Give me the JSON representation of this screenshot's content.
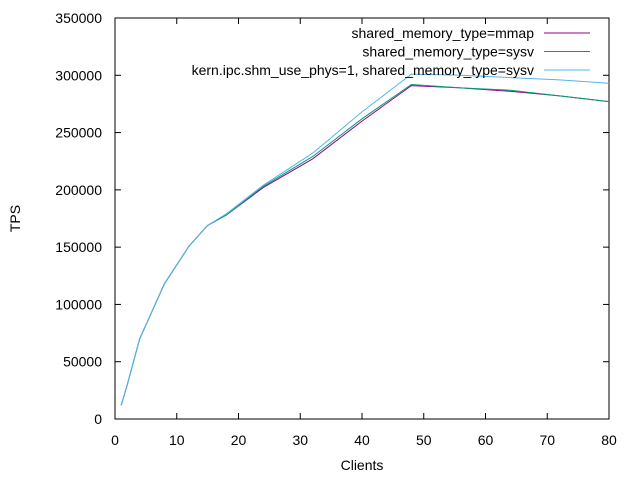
{
  "chart_data": {
    "type": "line",
    "title": "",
    "xlabel": "Clients",
    "ylabel": "TPS",
    "xlim": [
      0,
      80
    ],
    "ylim": [
      0,
      350000
    ],
    "xticks": [
      0,
      10,
      20,
      30,
      40,
      50,
      60,
      70,
      80
    ],
    "yticks": [
      0,
      50000,
      100000,
      150000,
      200000,
      250000,
      300000,
      350000
    ],
    "grid": false,
    "legend_position": "top-right",
    "x": [
      1,
      2,
      4,
      8,
      12,
      15,
      18,
      24,
      32,
      40,
      48,
      56,
      64,
      72,
      80
    ],
    "series": [
      {
        "name": "shared_memory_type=mmap",
        "color": "#94008f",
        "values": [
          12000,
          30000,
          70000,
          118000,
          151000,
          169000,
          178000,
          202000,
          227000,
          260000,
          291000,
          289000,
          286000,
          282000,
          277000
        ]
      },
      {
        "name": "shared_memory_type=sysv",
        "color": "#009e73",
        "values": [
          12000,
          30000,
          70000,
          118000,
          151000,
          169000,
          178000,
          203000,
          229000,
          262000,
          292000,
          289000,
          287000,
          282000,
          277000
        ]
      },
      {
        "name": "kern.ipc.shm_use_phys=1, shared_memory_type=sysv",
        "color": "#56b4e9",
        "values": [
          12000,
          30000,
          70000,
          118000,
          151000,
          169000,
          179000,
          204000,
          232000,
          268000,
          301000,
          300000,
          298000,
          296000,
          293000
        ]
      }
    ]
  }
}
